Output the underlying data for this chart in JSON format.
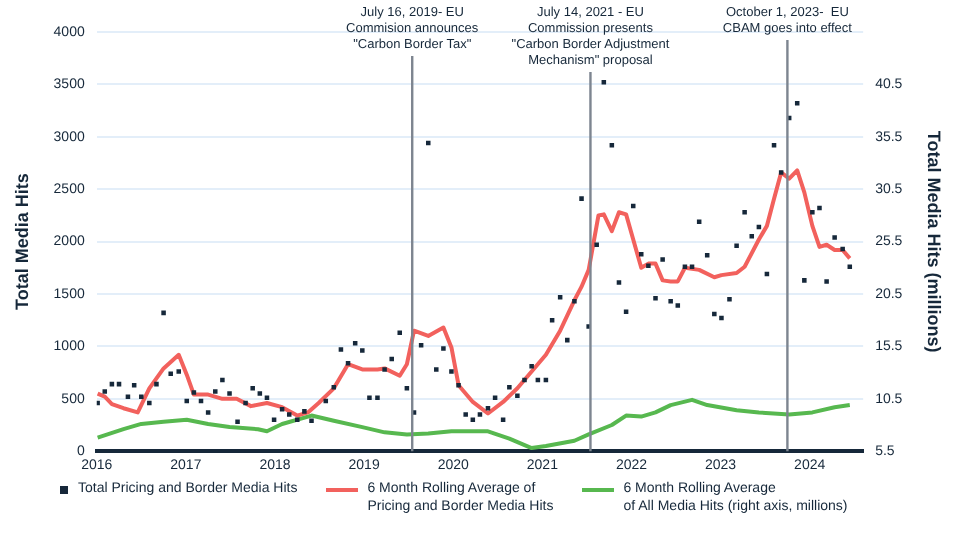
{
  "chart_data": {
    "type": "line",
    "ylabel": "Total Media Hits",
    "y2label": "Total Media Hits (millions)",
    "xlim": [
      2016,
      2024.6
    ],
    "xticks": [
      2016,
      2017,
      2018,
      2019,
      2020,
      2021,
      2022,
      2023,
      2024
    ],
    "ylim": [
      0,
      4000
    ],
    "yticks": [
      0,
      500,
      1000,
      1500,
      2000,
      2500,
      3000,
      3500,
      4000
    ],
    "y2lim": [
      5.5,
      45.5
    ],
    "y2ticks": [
      5.5,
      10.5,
      15.5,
      20.5,
      25.5,
      30.5,
      35.5,
      40.5
    ],
    "grid": "y",
    "legend": "bottom",
    "series": [
      {
        "name": "Total Pricing and Border Media Hits",
        "type": "scatter",
        "marker": "square",
        "color": "#16283a",
        "x": [
          2016.01,
          2016.09,
          2016.17,
          2016.25,
          2016.35,
          2016.42,
          2016.5,
          2016.59,
          2016.67,
          2016.75,
          2016.83,
          2016.92,
          2017.01,
          2017.09,
          2017.17,
          2017.25,
          2017.33,
          2017.41,
          2017.49,
          2017.58,
          2017.67,
          2017.75,
          2017.83,
          2017.91,
          2017.99,
          2018.08,
          2018.16,
          2018.25,
          2018.33,
          2018.41,
          2018.57,
          2018.66,
          2018.74,
          2018.82,
          2018.9,
          2018.98,
          2019.06,
          2019.15,
          2019.23,
          2019.31,
          2019.4,
          2019.48,
          2019.56,
          2019.64,
          2019.72,
          2019.81,
          2019.89,
          2019.98,
          2020.06,
          2020.14,
          2020.22,
          2020.3,
          2020.39,
          2020.47,
          2020.56,
          2020.63,
          2020.72,
          2020.8,
          2020.88,
          2020.95,
          2021.04,
          2021.11,
          2021.2,
          2021.28,
          2021.36,
          2021.44,
          2021.52,
          2021.61,
          2021.69,
          2021.78,
          2021.86,
          2021.94,
          2022.02,
          2022.11,
          2022.19,
          2022.27,
          2022.35,
          2022.44,
          2022.52,
          2022.6,
          2022.68,
          2022.76,
          2022.85,
          2022.93,
          2023.01,
          2023.1,
          2023.18,
          2023.27,
          2023.35,
          2023.43,
          2023.52,
          2023.6,
          2023.68,
          2023.77,
          2023.86,
          2023.94,
          2024.03,
          2024.11,
          2024.19,
          2024.28,
          2024.37,
          2024.45
        ],
        "values": [
          460,
          570,
          640,
          640,
          520,
          630,
          520,
          460,
          640,
          1320,
          740,
          760,
          480,
          560,
          480,
          370,
          570,
          680,
          550,
          280,
          460,
          600,
          550,
          510,
          300,
          400,
          350,
          300,
          380,
          290,
          480,
          610,
          970,
          840,
          1030,
          960,
          510,
          510,
          780,
          880,
          1130,
          600,
          370,
          1010,
          2940,
          780,
          980,
          760,
          630,
          350,
          300,
          350,
          410,
          510,
          300,
          610,
          530,
          680,
          810,
          680,
          680,
          1250,
          1470,
          1060,
          1430,
          2410,
          1190,
          1970,
          3520,
          2920,
          1610,
          1330,
          2340,
          1880,
          1770,
          1460,
          1830,
          1430,
          1390,
          1760,
          1760,
          2190,
          1870,
          1310,
          1270,
          1450,
          1960,
          2280,
          2050,
          2140,
          1690,
          2920,
          2660,
          3180,
          3320,
          1630,
          2280,
          2320,
          1620,
          2040,
          1930,
          1760
        ]
      },
      {
        "name": "6 Month Rolling Average of\nPricing and Border Media Hits",
        "color": "#f2615d",
        "x": [
          2016.01,
          2016.09,
          2016.17,
          2016.3,
          2016.46,
          2016.59,
          2016.75,
          2016.92,
          2017.01,
          2017.09,
          2017.25,
          2017.41,
          2017.57,
          2017.73,
          2017.91,
          2018.08,
          2018.25,
          2018.37,
          2018.49,
          2018.66,
          2018.82,
          2018.98,
          2019.15,
          2019.23,
          2019.4,
          2019.48,
          2019.56,
          2019.72,
          2019.89,
          2019.98,
          2020.06,
          2020.22,
          2020.39,
          2020.56,
          2020.72,
          2020.88,
          2021.04,
          2021.2,
          2021.36,
          2021.44,
          2021.52,
          2021.63,
          2021.69,
          2021.78,
          2021.86,
          2021.94,
          2022.02,
          2022.11,
          2022.19,
          2022.27,
          2022.35,
          2022.44,
          2022.52,
          2022.6,
          2022.76,
          2022.93,
          2023.01,
          2023.18,
          2023.27,
          2023.43,
          2023.52,
          2023.6,
          2023.68,
          2023.77,
          2023.86,
          2023.94,
          2024.03,
          2024.11,
          2024.19,
          2024.28,
          2024.37,
          2024.45
        ],
        "values": [
          550,
          520,
          450,
          410,
          370,
          600,
          790,
          920,
          730,
          540,
          540,
          500,
          500,
          430,
          460,
          420,
          340,
          370,
          460,
          600,
          830,
          780,
          780,
          790,
          720,
          830,
          1150,
          1100,
          1180,
          990,
          630,
          470,
          360,
          470,
          600,
          760,
          920,
          1150,
          1440,
          1570,
          1730,
          2250,
          2260,
          2100,
          2280,
          2260,
          2020,
          1750,
          1790,
          1790,
          1630,
          1620,
          1620,
          1750,
          1730,
          1660,
          1680,
          1700,
          1760,
          2020,
          2150,
          2410,
          2660,
          2600,
          2680,
          2470,
          2150,
          1950,
          1970,
          1920,
          1920,
          1840
        ]
      },
      {
        "name": "6 Month Rolling Average\nof All Media Hits (right axis, millions)",
        "axis": "y2",
        "color": "#57b84f",
        "x": [
          2016.01,
          2016.3,
          2016.5,
          2016.75,
          2017.01,
          2017.25,
          2017.49,
          2017.81,
          2017.91,
          2018.08,
          2018.41,
          2018.66,
          2018.98,
          2019.23,
          2019.48,
          2019.72,
          2019.98,
          2020.22,
          2020.39,
          2020.63,
          2020.88,
          2021.04,
          2021.36,
          2021.52,
          2021.78,
          2021.94,
          2022.11,
          2022.27,
          2022.44,
          2022.68,
          2022.85,
          2023.18,
          2023.43,
          2023.77,
          2024.03,
          2024.28,
          2024.45
        ],
        "values": [
          6.8,
          7.6,
          8.1,
          8.3,
          8.5,
          8.1,
          7.8,
          7.6,
          7.4,
          8.1,
          8.9,
          8.4,
          7.8,
          7.3,
          7.1,
          7.2,
          7.4,
          7.4,
          7.4,
          6.7,
          5.8,
          6.0,
          6.5,
          7.1,
          8.0,
          8.9,
          8.8,
          9.2,
          9.9,
          10.4,
          9.9,
          9.4,
          9.2,
          9.0,
          9.2,
          9.7,
          9.9
        ]
      }
    ],
    "ref_lines": [
      {
        "axis": "x",
        "value": 2019.54,
        "label": "July 16, 2019- EU\nCommision announces\n\"Carbon Border Tax\"",
        "color": "#7d8590"
      },
      {
        "axis": "x",
        "value": 2021.54,
        "label": "July 14, 2021 - EU\nCommission presents\n\"Carbon Border Adjustment\nMechanism\" proposal",
        "color": "#7d8590"
      },
      {
        "axis": "x",
        "value": 2023.75,
        "label": "October 1, 2023-  EU\nCBAM goes into effect",
        "color": "#7d8590"
      }
    ]
  }
}
